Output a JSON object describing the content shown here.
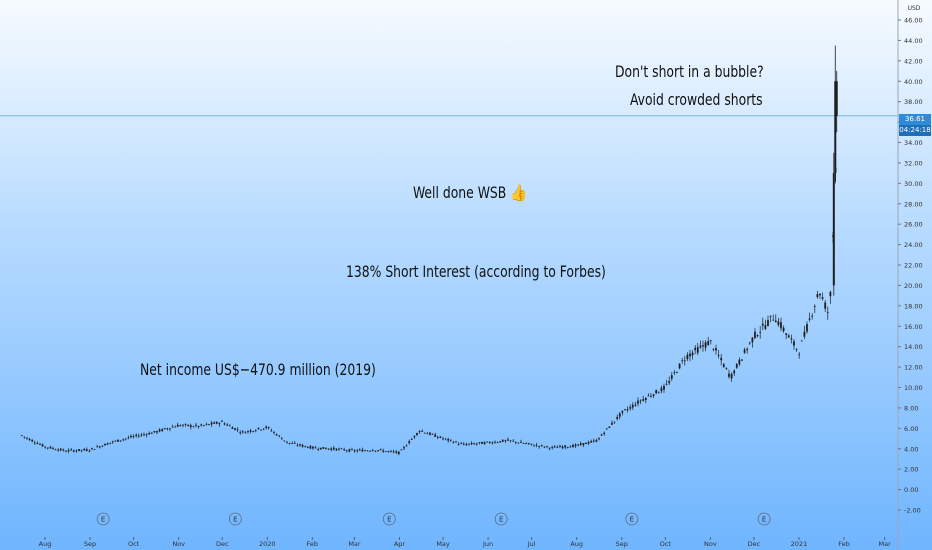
{
  "chart_data": {
    "type": "candlestick",
    "currency": "USD",
    "last_price": "36.61",
    "countdown": "04:24:18",
    "y_ticks": [
      "-2.00",
      "0.00",
      "2.00",
      "4.00",
      "6.00",
      "8.00",
      "10.00",
      "12.00",
      "14.00",
      "16.00",
      "18.00",
      "20.00",
      "22.00",
      "24.00",
      "26.00",
      "28.00",
      "30.00",
      "32.00",
      "34.00",
      "36.00",
      "38.00",
      "40.00",
      "42.00",
      "44.00",
      "46.00"
    ],
    "ylim": [
      -2,
      46
    ],
    "x_ticks": [
      "Aug",
      "Sep",
      "Oct",
      "Nov",
      "Dec",
      "2020",
      "Feb",
      "Mar",
      "Apr",
      "May",
      "Jun",
      "Jul",
      "Aug",
      "Sep",
      "Oct",
      "Nov",
      "Dec",
      "2021",
      "Feb",
      "Mar"
    ],
    "earnings_markers": [
      "E",
      "E",
      "E",
      "E",
      "E",
      "E"
    ],
    "annotations": [
      "Don't short in a bubble?",
      "Avoid crowded shorts",
      "Well done WSB 👍",
      "138% Short Interest (according to Forbes)",
      "Net income US$−470.9 million (2019)"
    ],
    "series": [
      {
        "x": [
          "2019-07-16",
          "2019-08-01",
          "2019-08-15",
          "2019-09-01",
          "2019-09-15",
          "2019-10-01",
          "2019-10-15",
          "2019-11-01",
          "2019-11-15",
          "2019-12-01",
          "2019-12-15",
          "2020-01-01",
          "2020-01-15",
          "2020-02-01",
          "2020-02-15",
          "2020-03-01",
          "2020-03-15",
          "2020-04-01",
          "2020-04-15",
          "2020-05-01",
          "2020-05-15",
          "2020-06-01",
          "2020-06-15",
          "2020-07-01",
          "2020-07-15",
          "2020-08-01",
          "2020-08-15",
          "2020-09-01",
          "2020-09-15",
          "2020-10-01",
          "2020-10-15",
          "2020-11-01",
          "2020-11-15",
          "2020-12-01",
          "2020-12-15",
          "2021-01-01",
          "2021-01-15",
          "2021-01-22",
          "2021-01-26",
          "2021-01-27"
        ],
        "values": [
          5.3,
          4.2,
          3.8,
          3.9,
          4.6,
          5.2,
          5.6,
          6.3,
          6.2,
          6.6,
          5.6,
          6.1,
          4.6,
          4.1,
          4.0,
          3.8,
          3.9,
          3.6,
          5.8,
          5.0,
          4.4,
          4.6,
          4.8,
          4.4,
          4.1,
          4.3,
          4.8,
          7.5,
          8.8,
          10.0,
          13.0,
          14.5,
          11.0,
          15.0,
          17.0,
          13.5,
          19.5,
          17.0,
          30.0,
          38.0
        ]
      }
    ]
  }
}
